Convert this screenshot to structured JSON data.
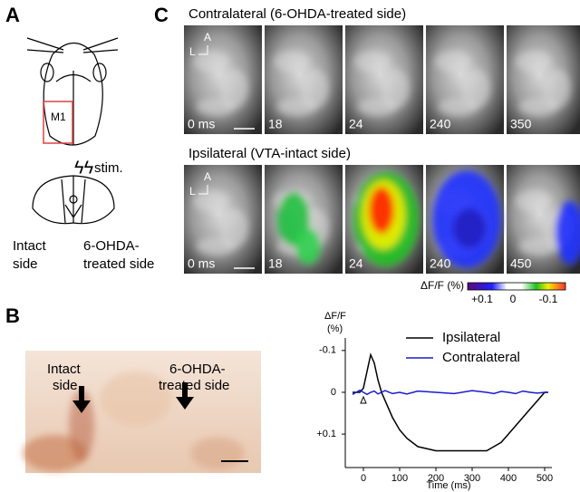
{
  "panel_a": {
    "label": "A",
    "region_label": "M1",
    "stim_label": "stim.",
    "intact_label": [
      "Intact",
      "side"
    ],
    "treated_label": [
      "6-OHDA-",
      "treated side"
    ]
  },
  "panel_b": {
    "label": "B",
    "intact_label": [
      "Intact",
      "side"
    ],
    "treated_label": [
      "6-OHDA-",
      "treated side"
    ]
  },
  "panel_c": {
    "label": "C",
    "rows": [
      {
        "title": "Contralateral (6-OHDA-treated side)",
        "frames": [
          "0 ms",
          "18",
          "24",
          "240",
          "350"
        ]
      },
      {
        "title": "Ipsilateral (VTA-intact side)",
        "frames": [
          "0 ms",
          "18",
          "24",
          "240",
          "450"
        ]
      }
    ],
    "orientation": [
      "A",
      "L"
    ],
    "colorbar": {
      "label": "ΔF/F (%)",
      "ticks": [
        "+0.1",
        "0",
        "-0.1"
      ]
    }
  },
  "chart_data": {
    "type": "line",
    "ylabel": [
      "ΔF/F",
      "(%)"
    ],
    "xlabel": "Time (ms)",
    "x": [
      -30,
      -20,
      -10,
      0,
      10,
      20,
      30,
      40,
      50,
      60,
      80,
      100,
      120,
      150,
      200,
      250,
      300,
      340,
      360,
      380,
      400,
      420,
      440,
      460,
      480,
      500,
      510
    ],
    "series": [
      {
        "name": "Ipsilateral",
        "color": "#000000",
        "values": [
          0,
          0,
          0,
          -0.01,
          -0.05,
          -0.09,
          -0.07,
          -0.03,
          0,
          0.02,
          0.06,
          0.09,
          0.11,
          0.13,
          0.14,
          0.14,
          0.14,
          0.14,
          0.13,
          0.12,
          0.1,
          0.08,
          0.06,
          0.04,
          0.02,
          0,
          0
        ]
      },
      {
        "name": "Contralateral",
        "color": "#1a1ad0",
        "values": [
          0.005,
          0,
          -0.005,
          0,
          0.005,
          0,
          -0.003,
          0.004,
          0,
          -0.004,
          0.003,
          0,
          0.004,
          -0.003,
          0,
          0.003,
          -0.004,
          0,
          0.003,
          -0.002,
          0,
          0.003,
          -0.003,
          0,
          0.002,
          0,
          0
        ]
      }
    ],
    "xlim": [
      -50,
      520
    ],
    "xticks": [
      0,
      100,
      200,
      300,
      400,
      500
    ],
    "ylim": [
      0.18,
      -0.13
    ],
    "yticks": [
      -0.1,
      0,
      {
        "value": 0.1,
        "label": "+0.1"
      }
    ]
  }
}
